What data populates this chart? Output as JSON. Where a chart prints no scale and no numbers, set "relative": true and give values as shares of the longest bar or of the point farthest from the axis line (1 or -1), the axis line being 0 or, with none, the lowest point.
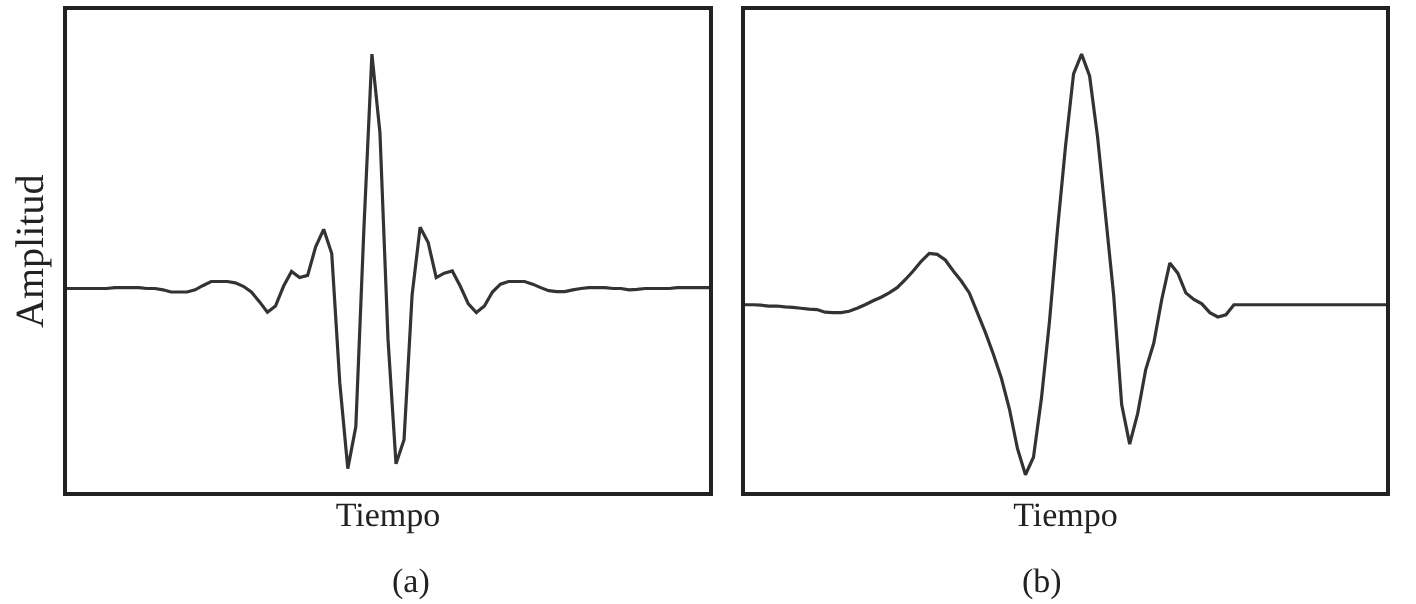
{
  "chart_data": [
    {
      "type": "line",
      "relative": true,
      "xlabel": "Tiempo",
      "ylabel": "Amplitud",
      "annotations": [
        "(a)"
      ],
      "tick_labels": false,
      "categories": [
        null,
        null,
        null,
        null,
        null,
        null,
        null,
        null,
        null,
        null,
        null,
        null,
        null,
        null,
        null,
        null,
        null,
        null,
        null,
        null,
        null,
        null,
        null,
        null,
        null,
        null,
        null,
        null,
        null,
        null,
        null,
        null,
        null,
        null,
        null,
        null,
        null,
        null,
        null,
        null,
        null,
        null,
        null,
        null,
        null,
        null,
        null,
        null,
        null,
        null,
        null,
        null,
        null,
        null,
        null,
        null,
        null,
        null,
        null,
        null,
        null,
        null,
        null,
        null,
        null,
        null,
        null,
        null,
        null,
        null,
        null,
        null,
        null,
        null,
        null,
        null,
        null,
        null,
        null,
        null,
        null
      ],
      "series": [
        {
          "color": "#333333",
          "values": [
            0.465,
            0.465,
            0.465,
            0.465,
            0.465,
            0.465,
            0.467,
            0.467,
            0.467,
            0.467,
            0.465,
            0.465,
            0.462,
            0.457,
            0.457,
            0.457,
            0.462,
            0.472,
            0.481,
            0.481,
            0.481,
            0.478,
            0.47,
            0.457,
            0.435,
            0.411,
            0.425,
            0.47,
            0.504,
            0.49,
            0.495,
            0.56,
            0.6,
            0.545,
            0.25,
            0.054,
            0.15,
            0.6,
            1.0,
            0.82,
            0.35,
            0.065,
            0.12,
            0.45,
            0.605,
            0.57,
            0.49,
            0.5,
            0.505,
            0.47,
            0.43,
            0.41,
            0.425,
            0.457,
            0.475,
            0.481,
            0.481,
            0.481,
            0.475,
            0.467,
            0.46,
            0.458,
            0.458,
            0.462,
            0.465,
            0.467,
            0.467,
            0.467,
            0.465,
            0.465,
            0.462,
            0.463,
            0.465,
            0.465,
            0.465,
            0.465,
            0.467,
            0.467,
            0.467,
            0.467,
            0.467
          ]
        }
      ]
    },
    {
      "type": "line",
      "relative": true,
      "xlabel": "Tiempo",
      "annotations": [
        "(b)"
      ],
      "tick_labels": false,
      "categories": [
        null,
        null,
        null,
        null,
        null,
        null,
        null,
        null,
        null,
        null,
        null,
        null,
        null,
        null,
        null,
        null,
        null,
        null,
        null,
        null,
        null,
        null,
        null,
        null,
        null,
        null,
        null,
        null,
        null,
        null,
        null,
        null,
        null,
        null,
        null,
        null,
        null,
        null,
        null,
        null,
        null,
        null,
        null,
        null,
        null,
        null,
        null,
        null,
        null,
        null,
        null,
        null,
        null,
        null,
        null,
        null,
        null,
        null,
        null,
        null,
        null,
        null,
        null,
        null,
        null,
        null,
        null,
        null,
        null,
        null,
        null,
        null,
        null,
        null,
        null,
        null,
        null,
        null,
        null,
        null,
        null
      ],
      "series": [
        {
          "color": "#333333",
          "values": [
            0.428,
            0.428,
            0.427,
            0.425,
            0.425,
            0.423,
            0.422,
            0.42,
            0.418,
            0.417,
            0.411,
            0.41,
            0.41,
            0.413,
            0.42,
            0.428,
            0.437,
            0.445,
            0.455,
            0.467,
            0.485,
            0.505,
            0.527,
            0.545,
            0.543,
            0.53,
            0.505,
            0.482,
            0.455,
            0.41,
            0.365,
            0.315,
            0.26,
            0.19,
            0.1,
            0.04,
            0.08,
            0.215,
            0.39,
            0.6,
            0.79,
            0.955,
            1.0,
            0.95,
            0.81,
            0.63,
            0.45,
            0.2,
            0.11,
            0.18,
            0.28,
            0.34,
            0.44,
            0.523,
            0.5,
            0.455,
            0.44,
            0.43,
            0.41,
            0.4,
            0.405,
            0.428,
            0.428,
            0.428,
            0.428,
            0.428,
            0.428,
            0.428,
            0.428,
            0.428,
            0.428,
            0.428,
            0.428,
            0.428,
            0.428,
            0.428,
            0.428,
            0.428,
            0.428,
            0.428,
            0.428
          ]
        }
      ]
    }
  ]
}
